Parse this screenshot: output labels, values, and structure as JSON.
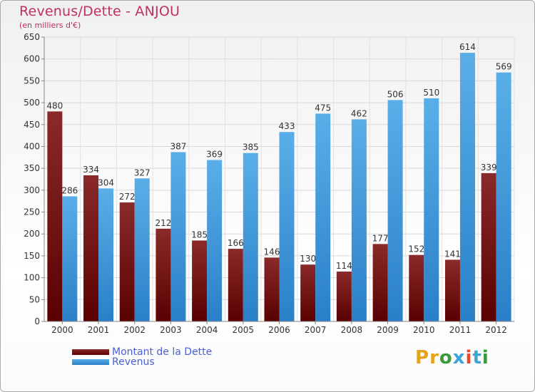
{
  "header": {
    "title": "Revenus/Dette - ANJOU",
    "subtitle": "(en milliers d'€)"
  },
  "legend": {
    "debt_label": "Montant de la Dette",
    "revenue_label": "Revenus"
  },
  "logo": {
    "text": "Proxiti",
    "letters": [
      "P",
      "r",
      "o",
      "x",
      "i",
      "t",
      "i"
    ],
    "colors": [
      "#e8a21a",
      "#e8a21a",
      "#3a9a3a",
      "#3ba4d8",
      "#e84a2a",
      "#3ba4d8",
      "#3a9a3a"
    ]
  },
  "colors": {
    "debt": "#7a1212",
    "revenue": "#4aa0e0",
    "title": "#c0305a",
    "legend_text": "#4a5fd6"
  },
  "chart_data": {
    "type": "bar",
    "title": "Revenus/Dette - ANJOU",
    "subtitle": "(en milliers d'€)",
    "categories": [
      "2000",
      "2001",
      "2002",
      "2003",
      "2004",
      "2005",
      "2006",
      "2007",
      "2008",
      "2009",
      "2010",
      "2011",
      "2012"
    ],
    "series": [
      {
        "name": "Montant de la Dette",
        "values": [
          480,
          334,
          272,
          212,
          185,
          166,
          146,
          130,
          114,
          177,
          152,
          141,
          339
        ]
      },
      {
        "name": "Revenus",
        "values": [
          286,
          304,
          327,
          387,
          369,
          385,
          433,
          475,
          462,
          506,
          510,
          614,
          569
        ]
      }
    ],
    "ylim": [
      0,
      650
    ],
    "yticks": [
      0,
      50,
      100,
      150,
      200,
      250,
      300,
      350,
      400,
      450,
      500,
      550,
      600,
      650
    ],
    "grid": true,
    "legend_position": "bottom-left"
  }
}
